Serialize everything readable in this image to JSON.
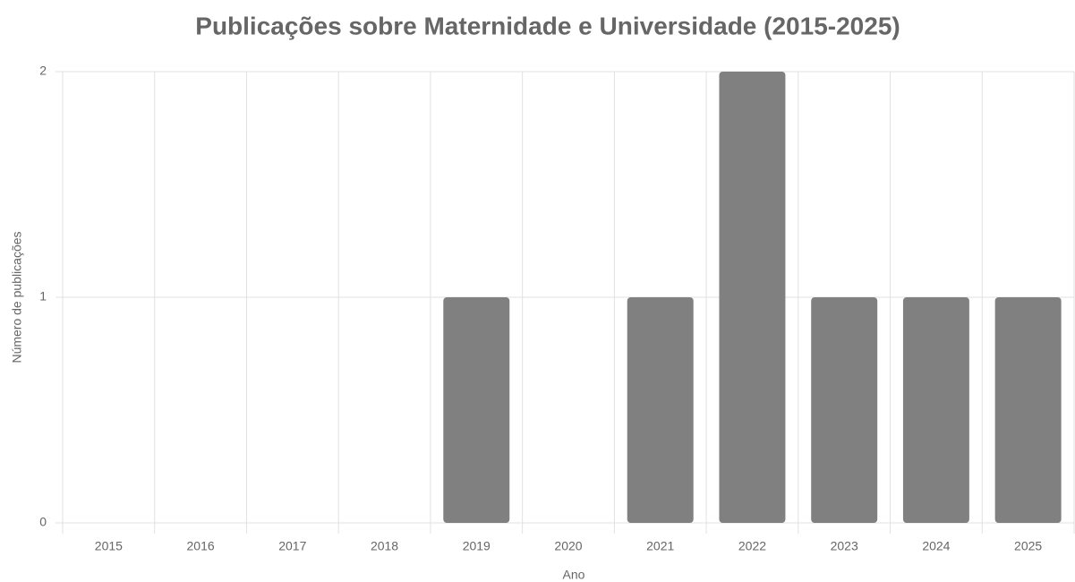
{
  "chart_data": {
    "type": "bar",
    "title": "Publicações sobre Maternidade e Universidade (2015-2025)",
    "x_label": "Ano",
    "y_label": "Número de publicações",
    "categories": [
      "2015",
      "2016",
      "2017",
      "2018",
      "2019",
      "2020",
      "2021",
      "2022",
      "2023",
      "2024",
      "2025"
    ],
    "values": [
      0,
      0,
      0,
      0,
      1,
      0,
      1,
      2,
      1,
      1,
      1
    ],
    "color": "#808080",
    "ylim": [
      0,
      2
    ],
    "yticks": [
      0,
      1,
      2
    ],
    "grid": true
  }
}
